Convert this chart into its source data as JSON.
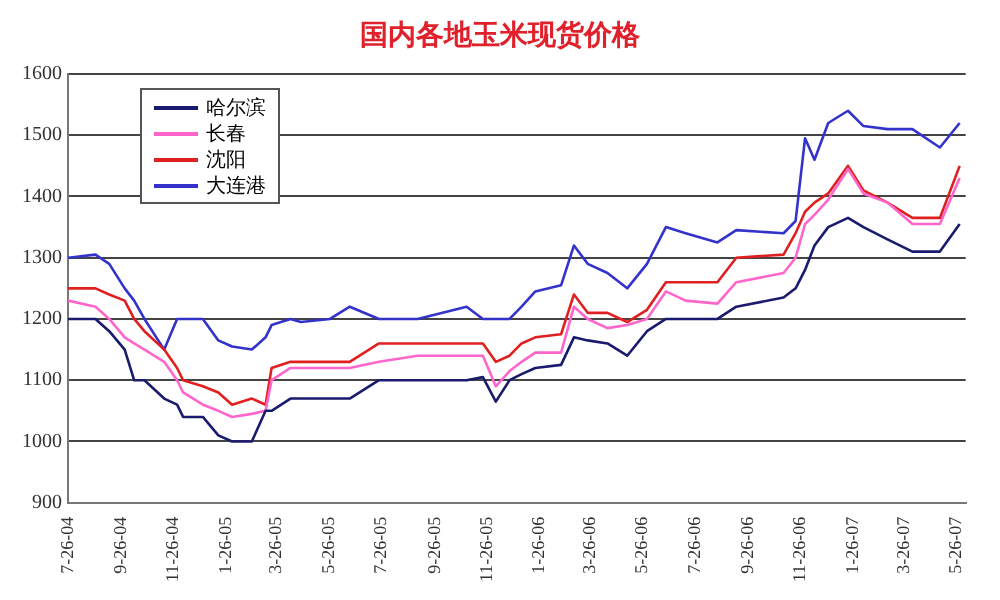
{
  "chart_data": {
    "type": "line",
    "title": "国内各地玉米现货价格",
    "x": [
      "2004-07-26",
      "2004-08-27",
      "2004-09-12",
      "2004-09-30",
      "2004-10-11",
      "2004-10-23",
      "2004-11-15",
      "2004-11-30",
      "2004-12-07",
      "2004-12-30",
      "2005-01-17",
      "2005-02-02",
      "2005-02-25",
      "2005-03-13",
      "2005-03-20",
      "2005-04-11",
      "2005-04-23",
      "2005-05-27",
      "2005-06-19",
      "2005-07-23",
      "2005-09-06",
      "2005-11-02",
      "2005-11-21",
      "2005-12-06",
      "2005-12-22",
      "2006-01-05",
      "2006-01-21",
      "2006-02-20",
      "2006-03-07",
      "2006-03-23",
      "2006-04-15",
      "2006-05-08",
      "2006-05-31",
      "2006-06-22",
      "2006-07-15",
      "2006-08-21",
      "2006-09-12",
      "2006-11-06",
      "2006-11-20",
      "2006-12-01",
      "2006-12-12",
      "2006-12-28",
      "2007-01-20",
      "2007-02-07",
      "2007-03-07",
      "2007-04-05",
      "2007-05-07",
      "2007-05-30"
    ],
    "series": [
      {
        "name": "哈尔滨",
        "color": "#1a1a6e",
        "values": [
          1200,
          1200,
          1180,
          1150,
          1100,
          1100,
          1070,
          1060,
          1040,
          1040,
          1010,
          1000,
          1000,
          1050,
          1050,
          1070,
          1070,
          1070,
          1070,
          1100,
          1100,
          1100,
          1105,
          1065,
          1100,
          1110,
          1120,
          1125,
          1170,
          1165,
          1160,
          1140,
          1180,
          1200,
          1200,
          1200,
          1220,
          1235,
          1250,
          1280,
          1320,
          1350,
          1365,
          1350,
          1330,
          1310,
          1310,
          1355
        ]
      },
      {
        "name": "长春",
        "color": "#ff66cc",
        "values": [
          1230,
          1220,
          1200,
          1170,
          1160,
          1150,
          1130,
          1100,
          1080,
          1060,
          1050,
          1040,
          1045,
          1050,
          1100,
          1120,
          1120,
          1120,
          1120,
          1130,
          1140,
          1140,
          1140,
          1090,
          1115,
          1130,
          1145,
          1145,
          1220,
          1200,
          1185,
          1190,
          1200,
          1245,
          1230,
          1225,
          1260,
          1275,
          1300,
          1355,
          1370,
          1395,
          1445,
          1405,
          1390,
          1355,
          1355,
          1430
        ]
      },
      {
        "name": "沈阳",
        "color": "#e02020",
        "values": [
          1250,
          1250,
          1240,
          1230,
          1200,
          1180,
          1150,
          1120,
          1100,
          1090,
          1080,
          1060,
          1070,
          1060,
          1120,
          1130,
          1130,
          1130,
          1130,
          1160,
          1160,
          1160,
          1160,
          1130,
          1140,
          1160,
          1170,
          1175,
          1240,
          1210,
          1210,
          1195,
          1215,
          1260,
          1260,
          1260,
          1300,
          1305,
          1340,
          1375,
          1390,
          1405,
          1450,
          1410,
          1390,
          1365,
          1365,
          1450
        ]
      },
      {
        "name": "大连港",
        "color": "#3333cc",
        "values": [
          1300,
          1305,
          1290,
          1250,
          1230,
          1200,
          1150,
          1200,
          1200,
          1200,
          1165,
          1155,
          1150,
          1170,
          1190,
          1200,
          1195,
          1200,
          1220,
          1200,
          1200,
          1220,
          1200,
          1200,
          1200,
          1220,
          1245,
          1255,
          1320,
          1290,
          1275,
          1250,
          1290,
          1350,
          1340,
          1325,
          1345,
          1340,
          1360,
          1495,
          1460,
          1520,
          1540,
          1515,
          1510,
          1510,
          1480,
          1520
        ]
      }
    ],
    "xlim": [
      "2004-07-26",
      "2007-06-06"
    ],
    "xticks": [
      {
        "value": "2004-07-26",
        "label": "7-26-04"
      },
      {
        "value": "2004-09-26",
        "label": "9-26-04"
      },
      {
        "value": "2004-11-26",
        "label": "11-26-04"
      },
      {
        "value": "2005-01-26",
        "label": "1-26-05"
      },
      {
        "value": "2005-03-26",
        "label": "3-26-05"
      },
      {
        "value": "2005-05-26",
        "label": "5-26-05"
      },
      {
        "value": "2005-07-26",
        "label": "7-26-05"
      },
      {
        "value": "2005-09-26",
        "label": "9-26-05"
      },
      {
        "value": "2005-11-26",
        "label": "11-26-05"
      },
      {
        "value": "2006-01-26",
        "label": "1-26-06"
      },
      {
        "value": "2006-03-26",
        "label": "3-26-06"
      },
      {
        "value": "2006-05-26",
        "label": "5-26-06"
      },
      {
        "value": "2006-07-26",
        "label": "7-26-06"
      },
      {
        "value": "2006-09-26",
        "label": "9-26-06"
      },
      {
        "value": "2006-11-26",
        "label": "11-26-06"
      },
      {
        "value": "2007-01-26",
        "label": "1-26-07"
      },
      {
        "value": "2007-03-26",
        "label": "3-26-07"
      },
      {
        "value": "2007-05-26",
        "label": "5-26-07"
      }
    ],
    "ylim": [
      900,
      1600
    ],
    "yticks": [
      900,
      1000,
      1100,
      1200,
      1300,
      1400,
      1500,
      1600
    ],
    "grid": "y",
    "legend": "top left",
    "line_style": "solid"
  }
}
